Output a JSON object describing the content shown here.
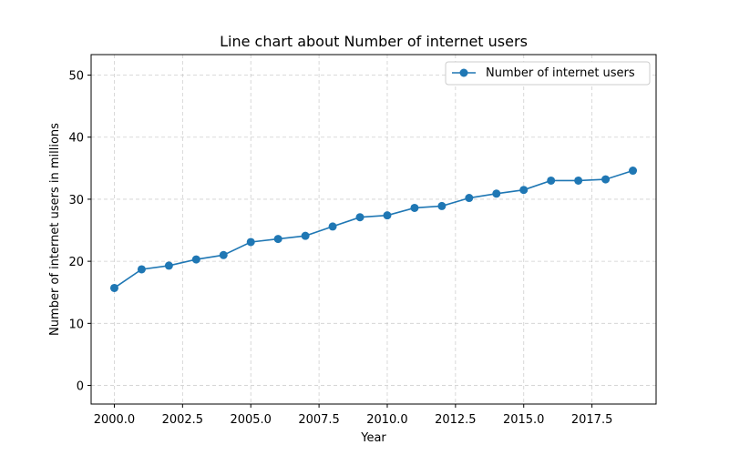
{
  "chart_data": {
    "type": "line",
    "title": "Line chart about Number of internet users",
    "xlabel": "Year",
    "ylabel": "Number of internet users in millions",
    "xlim": [
      1999.15,
      2019.85
    ],
    "ylim": [
      -3,
      53.3
    ],
    "xticks": [
      2000,
      2002.5,
      2005,
      2007.5,
      2010,
      2012.5,
      2015,
      2017.5
    ],
    "xtick_labels": [
      "2000.0",
      "2002.5",
      "2005.0",
      "2007.5",
      "2010.0",
      "2012.5",
      "2015.0",
      "2017.5"
    ],
    "yticks": [
      0,
      10,
      20,
      30,
      40,
      50
    ],
    "ytick_labels": [
      "0",
      "10",
      "20",
      "30",
      "40",
      "50"
    ],
    "grid": true,
    "legend_position": "top-right",
    "series": [
      {
        "name": "Number of internet users",
        "color": "#1f77b4",
        "x": [
          2000,
          2001,
          2002,
          2003,
          2004,
          2005,
          2006,
          2007,
          2008,
          2009,
          2010,
          2011,
          2012,
          2013,
          2014,
          2015,
          2016,
          2017,
          2018,
          2019
        ],
        "y": [
          15.7,
          18.7,
          19.3,
          20.3,
          21.0,
          23.1,
          23.6,
          24.1,
          25.6,
          27.1,
          27.4,
          28.6,
          28.9,
          30.2,
          30.9,
          31.5,
          33.0,
          33.0,
          33.2,
          34.6
        ]
      }
    ]
  }
}
